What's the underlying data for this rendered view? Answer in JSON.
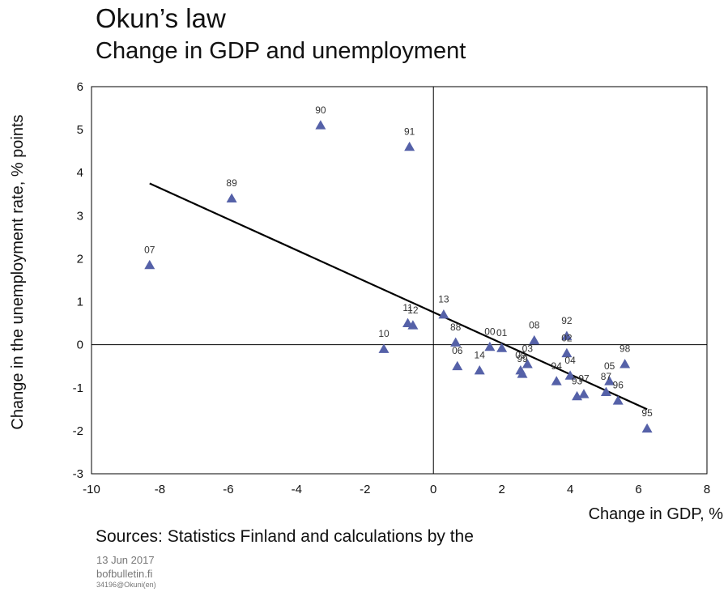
{
  "header": {
    "title": "Okun’s law",
    "subtitle": "Change in GDP and unemployment"
  },
  "footer": {
    "source": "Sources: Statistics Finland and calculations by the",
    "date": "13 Jun 2017",
    "site": "bofbulletin.fi",
    "code": "34196@Okuni(en)"
  },
  "colors": {
    "marker": "#5561a8",
    "trend": "#000000",
    "axis": "#000000"
  },
  "chart_data": {
    "type": "scatter",
    "title": "Okun’s law",
    "subtitle": "Change in GDP and unemployment",
    "xlabel": "Change in GDP, %",
    "ylabel": "Change in the unemployment rate, % points",
    "xlim": [
      -10,
      8
    ],
    "ylim": [
      -3,
      6
    ],
    "xticks": [
      -10,
      -8,
      -6,
      -4,
      -2,
      0,
      2,
      4,
      6,
      8
    ],
    "yticks": [
      6,
      5,
      4,
      3,
      2,
      1,
      0,
      -1,
      -2,
      -3
    ],
    "grid": false,
    "marker": "triangle",
    "points": [
      {
        "label": "90",
        "x": -3.3,
        "y": 5.1
      },
      {
        "label": "91",
        "x": -0.7,
        "y": 4.6
      },
      {
        "label": "89",
        "x": -5.9,
        "y": 3.4
      },
      {
        "label": "07",
        "x": -8.3,
        "y": 1.85
      },
      {
        "label": "13",
        "x": 0.3,
        "y": 0.7
      },
      {
        "label": "11",
        "x": -0.75,
        "y": 0.5
      },
      {
        "label": "12",
        "x": -0.6,
        "y": 0.45
      },
      {
        "label": "10",
        "x": -1.45,
        "y": -0.1
      },
      {
        "label": "88",
        "x": 0.65,
        "y": 0.05
      },
      {
        "label": "00",
        "x": 1.65,
        "y": -0.05
      },
      {
        "label": "01",
        "x": 2.0,
        "y": -0.08
      },
      {
        "label": "08",
        "x": 2.95,
        "y": 0.1
      },
      {
        "label": "92",
        "x": 3.9,
        "y": 0.2
      },
      {
        "label": "02",
        "x": 3.9,
        "y": -0.2
      },
      {
        "label": "03",
        "x": 2.75,
        "y": -0.45
      },
      {
        "label": "06",
        "x": 0.7,
        "y": -0.5
      },
      {
        "label": "14",
        "x": 1.35,
        "y": -0.6
      },
      {
        "label": "09",
        "x": 2.55,
        "y": -0.6
      },
      {
        "label": "99",
        "x": 2.6,
        "y": -0.68
      },
      {
        "label": "94",
        "x": 3.6,
        "y": -0.85
      },
      {
        "label": "04",
        "x": 4.0,
        "y": -0.72
      },
      {
        "label": "93",
        "x": 4.2,
        "y": -1.2
      },
      {
        "label": "97",
        "x": 4.4,
        "y": -1.15
      },
      {
        "label": "87",
        "x": 5.05,
        "y": -1.1
      },
      {
        "label": "05",
        "x": 5.15,
        "y": -0.85
      },
      {
        "label": "96",
        "x": 5.4,
        "y": -1.3
      },
      {
        "label": "98",
        "x": 5.6,
        "y": -0.45
      },
      {
        "label": "95",
        "x": 6.25,
        "y": -1.95
      }
    ],
    "trendline": {
      "x": [
        -8.3,
        6.25
      ],
      "y": [
        3.75,
        -1.5
      ]
    }
  }
}
